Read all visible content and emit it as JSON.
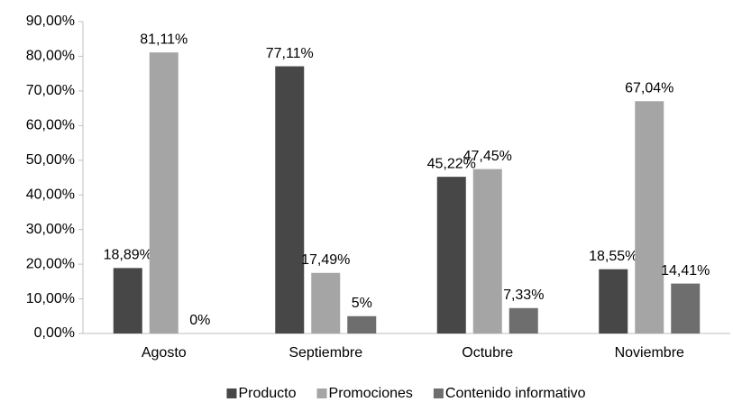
{
  "chart_data": {
    "type": "bar",
    "categories": [
      "Agosto",
      "Septiembre",
      "Octubre",
      "Noviembre"
    ],
    "series": [
      {
        "name": "Producto",
        "color": "#474747",
        "values": [
          18.89,
          77.11,
          45.22,
          18.55
        ],
        "value_labels": [
          "18,89%",
          "77,11%",
          "45,22%",
          "18,55%"
        ]
      },
      {
        "name": "Promociones",
        "color": "#a5a5a5",
        "values": [
          81.11,
          17.49,
          47.45,
          67.04
        ],
        "value_labels": [
          "81,11%",
          "17,49%",
          "47,45%",
          "67,04%"
        ]
      },
      {
        "name": "Contenido informativo",
        "color": "#6e6e6e",
        "values": [
          0,
          5,
          7.33,
          14.41
        ],
        "value_labels": [
          "0%",
          "5%",
          "7,33%",
          "14,41%"
        ]
      }
    ],
    "ylim": [
      0,
      90
    ],
    "yticks": [
      {
        "value": 0,
        "label": "0,00%"
      },
      {
        "value": 10,
        "label": "10,00%"
      },
      {
        "value": 20,
        "label": "20,00%"
      },
      {
        "value": 30,
        "label": "30,00%"
      },
      {
        "value": 40,
        "label": "40,00%"
      },
      {
        "value": 50,
        "label": "50,00%"
      },
      {
        "value": 60,
        "label": "60,00%"
      },
      {
        "value": 70,
        "label": "70,00%"
      },
      {
        "value": 80,
        "label": "80,00%"
      },
      {
        "value": 90,
        "label": "90,00%"
      }
    ],
    "grid": false,
    "legend": "bottom"
  }
}
